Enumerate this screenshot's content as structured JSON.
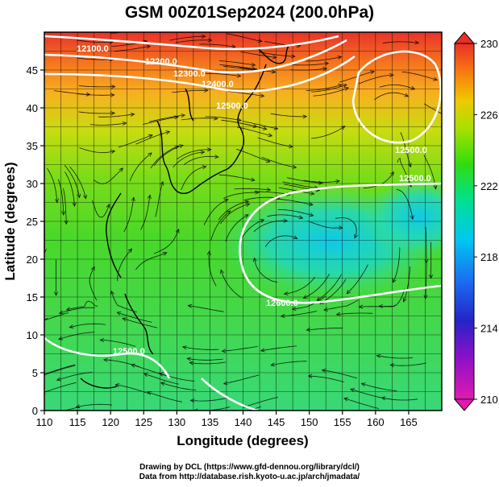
{
  "title": "GSM 00Z01Sep2024 (200.0hPa)",
  "x_axis": {
    "label": "Longitude (degrees)",
    "ticks": [
      "110",
      "115",
      "120",
      "125",
      "130",
      "135",
      "140",
      "145",
      "150",
      "155",
      "160",
      "165"
    ]
  },
  "y_axis": {
    "label": "Latitude  (degrees)",
    "ticks": [
      "0",
      "5",
      "10",
      "15",
      "20",
      "25",
      "30",
      "35",
      "40",
      "45"
    ]
  },
  "colorbar": {
    "ticks": [
      "210",
      "214",
      "218",
      "222",
      "226",
      "230"
    ],
    "colors": [
      "#dd00aa",
      "#2222dd",
      "#00c8ff",
      "#00e878",
      "#44dd00",
      "#ccdd00",
      "#ffaa00",
      "#ee3300"
    ]
  },
  "contour_labels": [
    "12100.0",
    "12200.0",
    "12300.0",
    "12400.0",
    "12500.0",
    "12500.0",
    "12500.0",
    "12600.0",
    "12500.0"
  ],
  "credits": {
    "line1": "Drawing by DCL (https://www.gfd-dennou.org/library/dcl/)",
    "line2": "Data from http://database.rish.kyoto-u.ac.jp/arch/jmadata/"
  }
}
